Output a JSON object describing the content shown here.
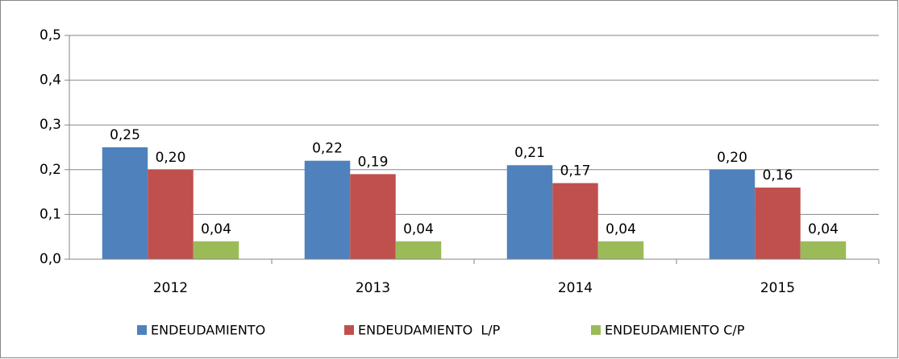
{
  "chart_data": {
    "type": "bar",
    "categories": [
      "2012",
      "2013",
      "2014",
      "2015"
    ],
    "series": [
      {
        "name": "ENDEUDAMIENTO",
        "color": "#4f81bd",
        "values": [
          0.25,
          0.22,
          0.21,
          0.2
        ],
        "value_labels": [
          "0,25",
          "0,22",
          "0,21",
          "0,20"
        ]
      },
      {
        "name": "ENDEUDAMIENTO  L/P",
        "color": "#c0504d",
        "values": [
          0.2,
          0.19,
          0.17,
          0.16
        ],
        "value_labels": [
          "0,20",
          "0,19",
          "0,17",
          "0,16"
        ]
      },
      {
        "name": "ENDEUDAMIENTO C/P",
        "color": "#9bbb59",
        "values": [
          0.04,
          0.04,
          0.04,
          0.04
        ],
        "value_labels": [
          "0,04",
          "0,04",
          "0,04",
          "0,04"
        ]
      }
    ],
    "ylim": [
      0,
      0.5
    ],
    "yticks": [
      {
        "value": 0,
        "label": "0,0"
      },
      {
        "value": 0.1,
        "label": "0,1"
      },
      {
        "value": 0.2,
        "label": "0,2"
      },
      {
        "value": 0.3,
        "label": "0,3"
      },
      {
        "value": 0.4,
        "label": "0,4"
      },
      {
        "value": 0.5,
        "label": "0,5"
      }
    ],
    "grid": true,
    "legend": "bottom"
  }
}
